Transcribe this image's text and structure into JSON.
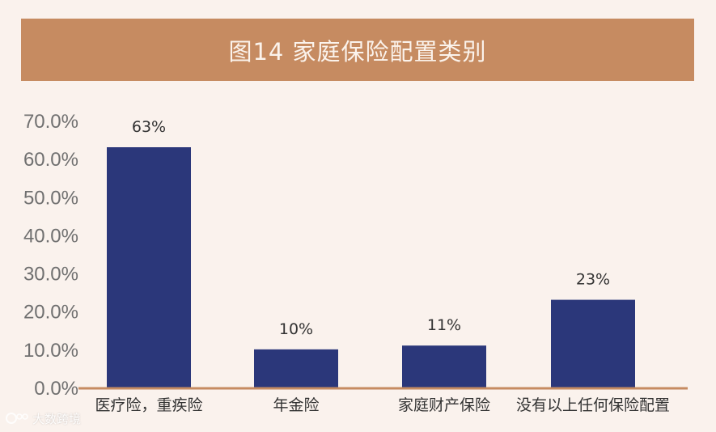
{
  "chart_data": {
    "type": "bar",
    "title": "图14 家庭保险配置类别",
    "categories": [
      "医疗险，重疾险",
      "年金险",
      "家庭财产保险",
      "没有以上任何保险配置"
    ],
    "values": [
      63,
      10,
      11,
      23
    ],
    "data_labels": [
      "63%",
      "10%",
      "11%",
      "23%"
    ],
    "ylim": [
      0,
      70
    ],
    "yticks": [
      "0.0%",
      "10.0%",
      "20.0%",
      "30.0%",
      "40.0%",
      "50.0%",
      "60.0%",
      "70.0%"
    ],
    "xlabel": "",
    "ylabel": "",
    "grid": false,
    "legend": "none",
    "colors": {
      "bar": "#2b377a",
      "axis": "#c68b61",
      "banner": "#c68b61",
      "background": "#faf2ed",
      "tick_text": "#707070",
      "label_text": "#333333"
    }
  },
  "watermark": {
    "icon": "watermark-logo-icon",
    "text": "大数跨境"
  }
}
